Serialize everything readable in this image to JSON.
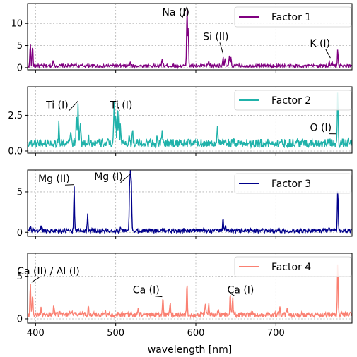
{
  "chart_data": {
    "type": "line",
    "xlabel": "wavelength [nm]",
    "xlim": [
      390,
      795
    ],
    "x_ticks": [
      400,
      500,
      600,
      700
    ],
    "grid": true,
    "legend_placement": "top-right",
    "panels": [
      {
        "series_name": "Factor 1",
        "color": "#800080",
        "ylim": [
          -0.5,
          14.5
        ],
        "y_ticks": [
          0,
          5,
          10
        ],
        "baseline": 0.4,
        "noise": 0.35,
        "peaks": [
          [
            393.4,
            5.5
          ],
          [
            396.2,
            5.0
          ],
          [
            422,
            2.0
          ],
          [
            450,
            1.0
          ],
          [
            518,
            1.3
          ],
          [
            558,
            2.2
          ],
          [
            589,
            14.1
          ],
          [
            590.5,
            9.0
          ],
          [
            616,
            1.5
          ],
          [
            634,
            2.6
          ],
          [
            636.5,
            1.8
          ],
          [
            642,
            2.8
          ],
          [
            644,
            2.2
          ],
          [
            766.5,
            1.5
          ],
          [
            769.9,
            1.5
          ],
          [
            777.2,
            4.0
          ]
        ],
        "annotations": [
          {
            "text": "Na (I)",
            "x": 589,
            "y": 13.8,
            "tx": 575,
            "ty": 11.8
          },
          {
            "text": "Si (II)",
            "x": 634,
            "y": 3.2,
            "tx": 625,
            "ty": 6.3
          },
          {
            "text": "K (I)",
            "x": 768,
            "y": 2.2,
            "tx": 755,
            "ty": 4.8
          }
        ]
      },
      {
        "series_name": "Factor 2",
        "color": "#20b2aa",
        "ylim": [
          -0.15,
          4.5
        ],
        "y_ticks": [
          0.0,
          2.5
        ],
        "y_tick_labels": [
          "0.0",
          "2.5"
        ],
        "baseline": 0.55,
        "noise": 0.3,
        "peaks": [
          [
            429,
            1.9
          ],
          [
            444,
            1.5
          ],
          [
            451,
            2.6
          ],
          [
            453,
            3.3
          ],
          [
            456,
            2.2
          ],
          [
            466,
            1.2
          ],
          [
            498,
            3.7
          ],
          [
            500,
            2.9
          ],
          [
            502,
            2.8
          ],
          [
            504,
            3.0
          ],
          [
            506,
            1.8
          ],
          [
            517,
            1.1
          ],
          [
            521,
            1.4
          ],
          [
            552,
            1.0
          ],
          [
            558,
            1.2
          ],
          [
            627,
            2.0
          ],
          [
            777.2,
            4.25
          ]
        ],
        "annotations": [
          {
            "text": "Ti (I)",
            "x": 453,
            "y": 3.5,
            "tx": 427,
            "ty": 3.0
          },
          {
            "text": "Ti (I)",
            "x": 503,
            "y": 3.1,
            "tx": 507,
            "ty": 3.0
          },
          {
            "text": "O (I)",
            "x": 775,
            "y": 1.2,
            "tx": 756,
            "ty": 1.4
          }
        ]
      },
      {
        "series_name": "Factor 3",
        "color": "#00008b",
        "ylim": [
          -0.5,
          7.7
        ],
        "y_ticks": [
          0,
          5
        ],
        "baseline": 0.2,
        "noise": 0.25,
        "peaks": [
          [
            393.4,
            0.7
          ],
          [
            396.8,
            0.6
          ],
          [
            407,
            0.9
          ],
          [
            448.1,
            5.9
          ],
          [
            465,
            2.2
          ],
          [
            470.3,
            0.6
          ],
          [
            506,
            0.9
          ],
          [
            517.3,
            5.4
          ],
          [
            518.4,
            7.2
          ],
          [
            519.5,
            5.8
          ],
          [
            634,
            2.0
          ],
          [
            637,
            1.1
          ],
          [
            766.5,
            0.6
          ],
          [
            777.2,
            5.7
          ]
        ],
        "annotations": [
          {
            "text": "Mg (II)",
            "x": 448.1,
            "y": 5.9,
            "tx": 423,
            "ty": 6.2
          },
          {
            "text": "Mg (I)",
            "x": 518.4,
            "y": 7.2,
            "tx": 491,
            "ty": 6.5
          }
        ]
      },
      {
        "series_name": "Factor 4",
        "color": "#fa8072",
        "ylim": [
          -0.5,
          7.7
        ],
        "y_ticks": [
          0,
          5
        ],
        "baseline": 0.5,
        "noise": 0.3,
        "peaks": [
          [
            393.4,
            4.3
          ],
          [
            396.2,
            3.0
          ],
          [
            407,
            1.2
          ],
          [
            422.7,
            1.6
          ],
          [
            430,
            0.9
          ],
          [
            443,
            1.0
          ],
          [
            445.5,
            1.2
          ],
          [
            458,
            0.8
          ],
          [
            466,
            1.7
          ],
          [
            487,
            1.1
          ],
          [
            528,
            1.1
          ],
          [
            558.9,
            2.6
          ],
          [
            568,
            2.2
          ],
          [
            589,
            4.5
          ],
          [
            612,
            1.6
          ],
          [
            616,
            2.0
          ],
          [
            628,
            0.9
          ],
          [
            643,
            2.9
          ],
          [
            646,
            2.7
          ],
          [
            671,
            0.9
          ],
          [
            705,
            1.4
          ],
          [
            714,
            1.1
          ],
          [
            777.2,
            7.0
          ]
        ],
        "annotations": [
          {
            "text": "Ca (II) / Al (I)",
            "x": 395,
            "y": 4.3,
            "tx": 416,
            "ty": 5.2
          },
          {
            "text": "Ca (I)",
            "x": 558,
            "y": 2.6,
            "tx": 538,
            "ty": 3.0
          },
          {
            "text": "Ca (I)",
            "x": 643,
            "y": 3.0,
            "tx": 656,
            "ty": 3.0
          }
        ]
      }
    ]
  }
}
